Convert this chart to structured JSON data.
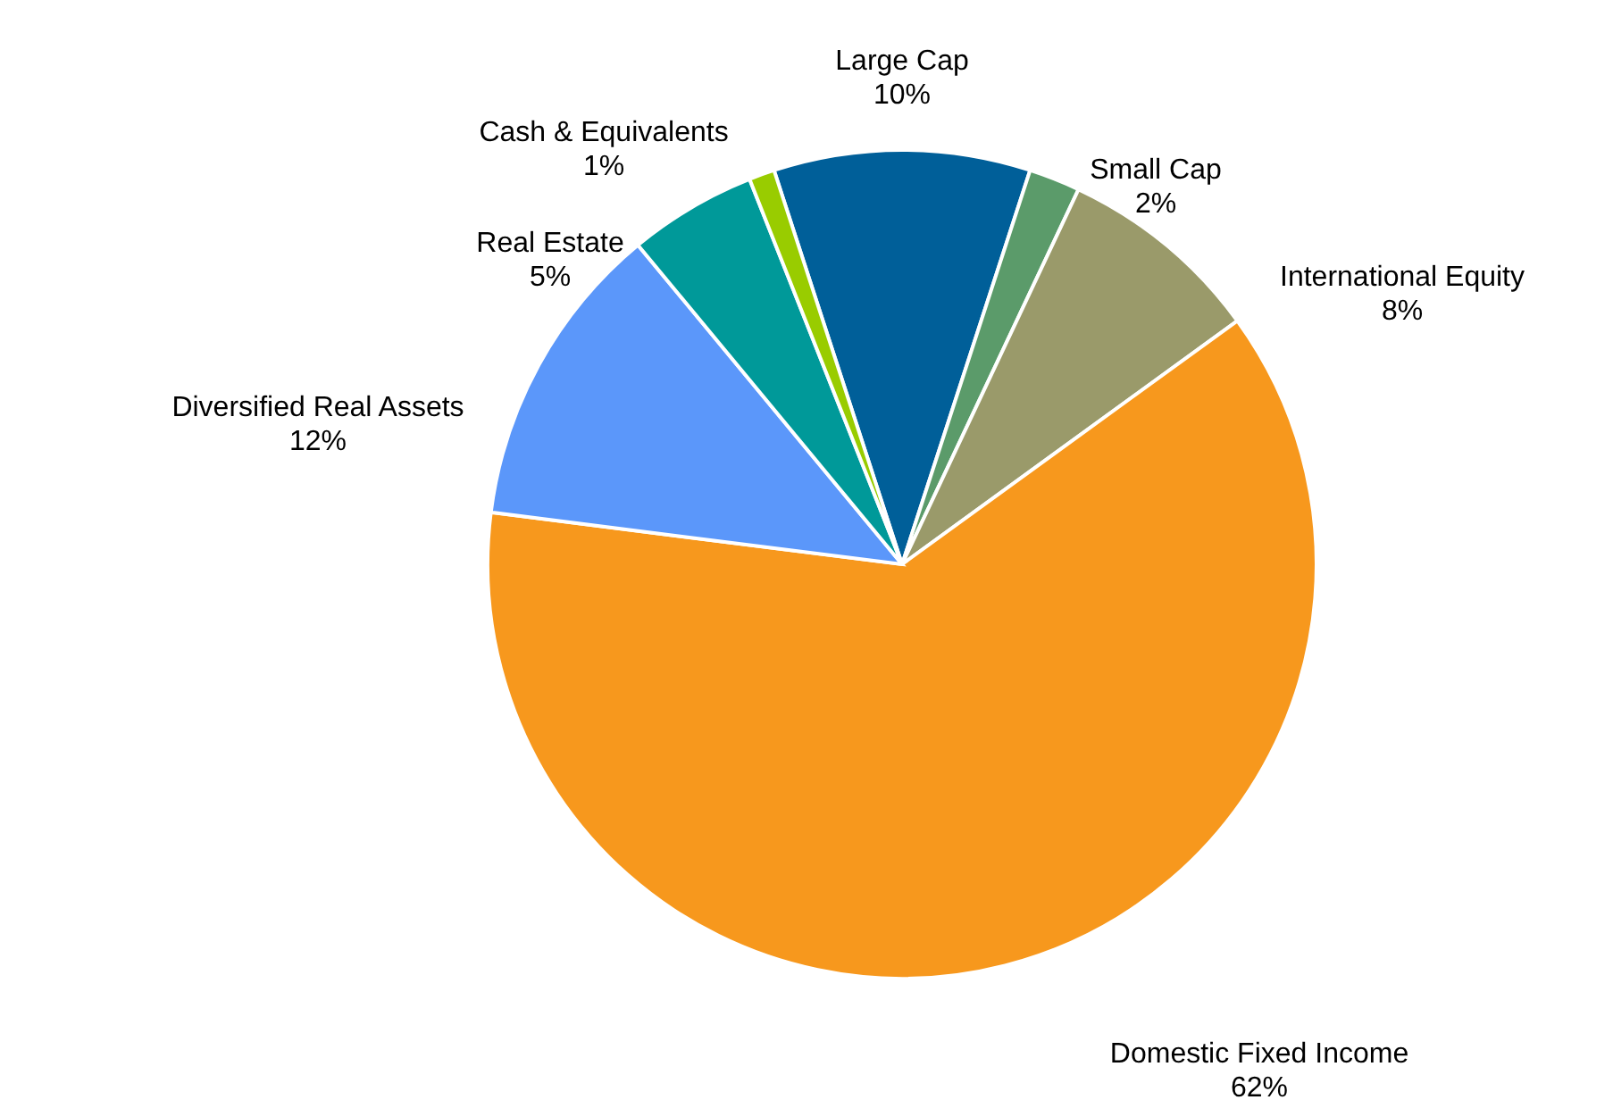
{
  "chart_data": {
    "type": "pie",
    "categories": [
      "Large Cap",
      "Small Cap",
      "International Equity",
      "Domestic Fixed Income",
      "Diversified Real Assets",
      "Real Estate",
      "Cash & Equivalents"
    ],
    "values": [
      10,
      2,
      8,
      62,
      12,
      5,
      1
    ],
    "colors": [
      "#005f99",
      "#5b9b6a",
      "#9a9a6a",
      "#f7981d",
      "#5b97fa",
      "#009999",
      "#99cc00"
    ],
    "value_labels": [
      "10%",
      "2%",
      "8%",
      "62%",
      "12%",
      "5%",
      "1%"
    ]
  }
}
